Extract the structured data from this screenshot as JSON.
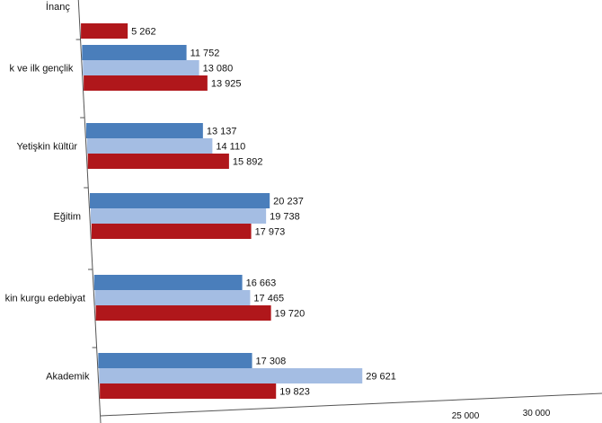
{
  "chart_data": {
    "type": "bar",
    "orientation": "horizontal",
    "categories": [
      "İnanç",
      "Çocuk ve ilk gençlik",
      "Yetişkin kültür",
      "Eğitim",
      "Yetişkin kurgu edebiyat",
      "Akademik"
    ],
    "categories_visible": [
      "İnanç",
      "k ve ilk gençlik",
      "Yetişkin kültür",
      "Eğitim",
      "kin kurgu edebiyat",
      "Akademik"
    ],
    "series": [
      {
        "color": "#4a7ebb",
        "values": [
          null,
          11752,
          13137,
          20237,
          16663,
          17308
        ]
      },
      {
        "color": "#a4bde3",
        "values": [
          null,
          13080,
          14110,
          19738,
          17465,
          29621
        ]
      },
      {
        "color": "#b0171b",
        "values": [
          5262,
          13925,
          15892,
          17973,
          19720,
          19823
        ]
      }
    ],
    "value_labels": [
      [
        null,
        "11 752",
        "13 137",
        "20 237",
        "16 663",
        "17 308"
      ],
      [
        null,
        "13 080",
        "14 110",
        "19 738",
        "17 465",
        "29 621"
      ],
      [
        "5 262",
        "13 925",
        "15 892",
        "17 973",
        "19 720",
        "19 823"
      ]
    ],
    "x_ticks": [
      25000,
      30000
    ],
    "x_tick_labels": [
      "25 000",
      "30 000"
    ],
    "xlim": [
      0,
      35000
    ],
    "title": "",
    "xlabel": "",
    "ylabel": "",
    "legend": "none",
    "grid": false
  }
}
